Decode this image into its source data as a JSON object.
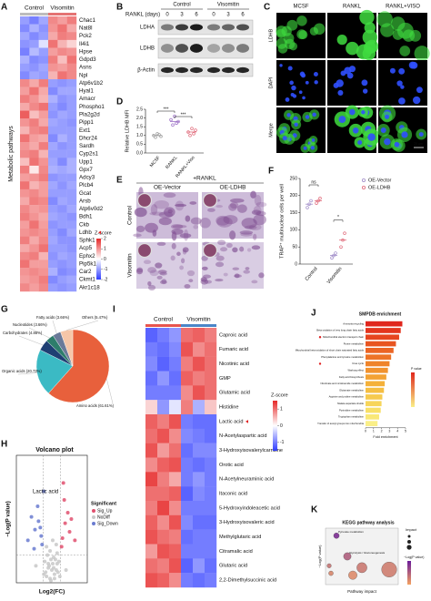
{
  "chart_data": [
    {
      "type": "heatmap",
      "panel": "A",
      "groups": [
        "Control",
        "Visomitin"
      ],
      "ylabel": "Metabolic pathways",
      "rows": [
        "Chac1",
        "Nat8l",
        "Pck2",
        "Il4i1",
        "Hpse",
        "Gdpd3",
        "Asns",
        "Npl",
        "Atp6v1b2",
        "Hyal1",
        "Amacr",
        "Phospho1",
        "Pla2g2d",
        "Pipp1",
        "Ext1",
        "Dhcr24",
        "Sardh",
        "Cyp2s1",
        "Upp1",
        "Gpx7",
        "Adcy3",
        "Plcb4",
        "Gcat",
        "Arsb",
        "Atp6v0d2",
        "Bdh1",
        "Ckb",
        "Ldhb",
        "Sphk1",
        "Acp5",
        "Ephx2",
        "Pip5k1b",
        "Car2",
        "Ckmt1",
        "Akr1c18"
      ],
      "values": [
        [
          -1.0,
          -1.3,
          -0.9,
          1.1,
          0.9,
          1.2
        ],
        [
          -1.2,
          -0.8,
          -1.1,
          1.0,
          1.3,
          0.8
        ],
        [
          -0.9,
          -1.2,
          -1.0,
          0.8,
          1.2,
          1.1
        ],
        [
          -1.1,
          -1.0,
          -0.3,
          1.3,
          0.7,
          0.4
        ],
        [
          -1.3,
          -0.7,
          -1.0,
          0.9,
          1.1,
          1.0
        ],
        [
          -0.8,
          -1.2,
          -1.1,
          1.2,
          0.6,
          1.3
        ],
        [
          -1.0,
          -1.1,
          -0.9,
          1.0,
          0.9,
          1.1
        ],
        [
          -1.2,
          -0.9,
          -1.0,
          0.7,
          1.3,
          1.1
        ],
        [
          1.1,
          0.8,
          1.2,
          -1.0,
          -1.1,
          -1.0
        ],
        [
          0.9,
          1.3,
          0.8,
          -1.2,
          -0.9,
          -0.9
        ],
        [
          1.2,
          1.0,
          0.7,
          -0.8,
          -1.1,
          -1.0
        ],
        [
          0.8,
          1.1,
          1.3,
          -1.0,
          -1.2,
          -1.0
        ],
        [
          1.5,
          0.6,
          0.9,
          -1.1,
          -0.9,
          -1.0
        ],
        [
          1.0,
          1.2,
          0.8,
          -0.9,
          -1.0,
          -1.1
        ],
        [
          0.7,
          1.1,
          1.2,
          -1.0,
          -1.0,
          -1.0
        ],
        [
          1.3,
          0.9,
          0.8,
          -1.2,
          -0.8,
          -1.0
        ],
        [
          1.0,
          0.8,
          1.2,
          -0.9,
          -1.1,
          -1.0
        ],
        [
          1.1,
          1.2,
          0.7,
          -1.0,
          -1.0,
          -1.0
        ],
        [
          0.6,
          1.3,
          1.0,
          -0.9,
          -1.2,
          -0.8
        ],
        [
          1.2,
          0.2,
          1.1,
          -0.8,
          -0.9,
          -0.8
        ],
        [
          0.9,
          1.0,
          1.2,
          -1.1,
          -1.0,
          -1.0
        ],
        [
          1.3,
          0.7,
          0.9,
          -0.9,
          -1.1,
          -0.9
        ],
        [
          1.0,
          1.1,
          0.9,
          -1.0,
          -1.0,
          -1.0
        ],
        [
          0.8,
          1.2,
          1.1,
          -1.2,
          -0.9,
          -1.0
        ],
        [
          1.1,
          0.9,
          1.0,
          -1.0,
          -1.1,
          -0.9
        ],
        [
          1.2,
          1.0,
          0.8,
          -0.9,
          -1.0,
          -1.1
        ],
        [
          0.9,
          1.3,
          0.9,
          -1.1,
          -1.0,
          -1.0
        ],
        [
          1.0,
          1.1,
          1.0,
          -1.0,
          -1.2,
          -0.9
        ],
        [
          1.2,
          0.8,
          1.1,
          -0.9,
          -1.1,
          -1.1
        ],
        [
          0.8,
          1.0,
          1.3,
          -1.0,
          -1.0,
          -1.1
        ],
        [
          1.1,
          1.2,
          0.7,
          -1.1,
          -0.9,
          -1.0
        ],
        [
          1.3,
          0.9,
          0.9,
          -1.0,
          -1.1,
          -1.0
        ],
        [
          1.0,
          1.1,
          1.0,
          -0.8,
          -1.2,
          -1.1
        ],
        [
          0.9,
          1.0,
          1.2,
          -1.2,
          -1.0,
          -0.9
        ],
        [
          1.1,
          0.9,
          1.1,
          -1.0,
          -1.1,
          -1.0
        ]
      ],
      "legend_title": "Z-score",
      "zlim": [
        -2,
        2
      ],
      "zticks": [
        2,
        1,
        0,
        -1,
        -2
      ],
      "group_colors": [
        "#bdbdbd",
        "#e57373"
      ]
    },
    {
      "type": "blot",
      "panel": "B",
      "xlabel": "RANKL (days)",
      "groups": [
        "Control",
        "Visomitin"
      ],
      "lanes": [
        "0",
        "3",
        "6",
        "0",
        "3",
        "6"
      ],
      "bands": [
        "LDHA",
        "LDHB",
        "β-Actin"
      ]
    },
    {
      "type": "image_grid",
      "panel": "C",
      "columns": [
        "MCSF",
        "RANKL",
        "RANKL+VISO"
      ],
      "rows": [
        "LDHB",
        "DAPI",
        "Merge"
      ],
      "scale_bar": "20 μm",
      "column_colors": [
        "#2e9d2e",
        "#2e9d2e",
        "#2e9d2e"
      ]
    },
    {
      "type": "dotplot",
      "panel": "D",
      "ylabel": "Relative LDHB MFI",
      "categories": [
        "MCSF",
        "RANKL",
        "RANKL+Viso"
      ],
      "points": [
        [
          1.0,
          0.9,
          1.1,
          1.05,
          0.95
        ],
        [
          1.9,
          1.6,
          2.1,
          1.7,
          1.8
        ],
        [
          1.2,
          1.0,
          1.4,
          1.1,
          1.3
        ]
      ],
      "means": [
        1.0,
        1.8,
        1.2
      ],
      "colors": [
        "#9e9e9e",
        "#9b6fc6",
        "#e06a7a"
      ],
      "ylim": [
        0,
        2.5
      ],
      "yticks": [
        {
          "value": 0,
          "label": "0.0"
        },
        {
          "value": 0.5,
          "label": "0.5"
        },
        {
          "value": 1,
          "label": "1.0"
        },
        {
          "value": 1.5,
          "label": "1.5"
        },
        {
          "value": 2,
          "label": "2.0"
        },
        {
          "value": 2.5,
          "label": "2.5"
        }
      ],
      "significance": [
        "***",
        "***"
      ]
    },
    {
      "type": "image_grid",
      "panel": "E",
      "title": "+RANKL",
      "columns": [
        "OE-Vector",
        "OE-LDHB"
      ],
      "rows": [
        "Control",
        "Visomitin"
      ]
    },
    {
      "type": "grouped_dotplot",
      "panel": "F",
      "ylabel": "TRAP⁺ multinuclear cells per well",
      "categories": [
        "Control",
        "Visomitin"
      ],
      "series": [
        {
          "name": "OE-Vector",
          "color": "#a08cc8",
          "points": [
            [
              165,
              175,
              185
            ],
            [
              18,
              25,
              32
            ]
          ],
          "means": [
            175,
            25
          ]
        },
        {
          "name": "OE-LDHB",
          "color": "#e06a7a",
          "points": [
            [
              178,
              185,
              192
            ],
            [
              50,
              70,
              90
            ]
          ],
          "means": [
            185,
            70
          ]
        }
      ],
      "ylim": [
        0,
        250
      ],
      "yticks": [
        0,
        50,
        100,
        150,
        200,
        250
      ],
      "significance": [
        "ns",
        "*"
      ]
    },
    {
      "type": "pie",
      "panel": "G",
      "labels": [
        "Amino acids (61.61%)",
        "Organic acids (20.73%)",
        "Carbohydrates (4.88%)",
        "Nucleotides (3.66%)",
        "Fatty acids (3.66%)",
        "Others (5.47%)"
      ],
      "values": [
        61.61,
        20.73,
        4.88,
        3.66,
        3.66,
        5.47
      ],
      "colors": [
        "#e8603c",
        "#3bbac4",
        "#1f3f73",
        "#2e7d6b",
        "#6b7a99",
        "#f6c6a8"
      ]
    },
    {
      "type": "scatter",
      "panel": "H",
      "title": "Volcano plot",
      "xlabel": "Log2(FC)",
      "ylabel": "−Log(P value)",
      "annotation": "Lactic acid",
      "legend_title": "Significant",
      "xlim": [
        -4,
        4
      ],
      "ylim": [
        0,
        6
      ],
      "x_thresholds": [
        -1,
        1
      ],
      "y_threshold": 1.3,
      "series": [
        {
          "name": "Sig_Up",
          "color": "#e0506e",
          "x": [
            1.2,
            1.5,
            2.0,
            1.8,
            2.6,
            1.1,
            2.2,
            1.4,
            1.3
          ],
          "y": [
            2.1,
            2.8,
            2.4,
            3.3,
            2.0,
            1.7,
            3.0,
            3.9,
            4.7
          ]
        },
        {
          "name": "NoDiff",
          "color": "#c8c8c8",
          "x": [
            -0.2,
            0.3,
            0.5,
            -0.6,
            0.1,
            -0.4,
            0.7,
            -0.8,
            0.2,
            -0.1,
            0.4,
            -0.3,
            0.9,
            -0.7,
            0.6,
            -0.5,
            0.0,
            0.8,
            -0.9,
            0.3,
            -0.2,
            0.5,
            -0.6,
            0.1,
            0.2,
            -0.4,
            0.6,
            -0.1,
            1.6,
            -1.8
          ],
          "y": [
            0.2,
            0.4,
            0.6,
            0.3,
            0.9,
            0.7,
            0.5,
            1.0,
            1.2,
            0.1,
            1.1,
            0.8,
            0.3,
            0.5,
            0.9,
            1.3,
            0.6,
            1.0,
            0.4,
            0.2,
            1.5,
            1.8,
            1.7,
            2.0,
            0.7,
            0.9,
            1.4,
            1.1,
            0.6,
            0.8
          ]
        },
        {
          "name": "Sig_Down",
          "color": "#6a7bd0",
          "x": [
            -1.2,
            -1.5,
            -1.9,
            -2.3,
            -1.1,
            -2.7,
            -1.6,
            -1.3,
            -2.0,
            -0.9
          ],
          "y": [
            2.2,
            2.9,
            2.5,
            3.1,
            1.8,
            2.0,
            3.6,
            2.6,
            1.6,
            4.3
          ]
        }
      ]
    },
    {
      "type": "heatmap",
      "panel": "I",
      "groups": [
        "Control",
        "Visomitin"
      ],
      "rows": [
        "Caproic acid",
        "Fumaric acid",
        "Nicotinic acid",
        "GMP",
        "Glutamic acid",
        "Histidine",
        "Lactic acid",
        "N-Acetylaspartic acid",
        "3-Hydroxyisovalerylcarnitine",
        "Orotic acid",
        "N-Acetylneuraminic acid",
        "Itaconic acid",
        "5-Hydroxyindoleacetic acid",
        "3-Hydroxyisovaleric acid",
        "Methylglutaric acid",
        "Citramalic acid",
        "Glutaric acid",
        "2,2-Dimethylsuccinic acid"
      ],
      "values": [
        [
          -1.2,
          -1.0,
          -0.8,
          1.0,
          1.1,
          0.9
        ],
        [
          -1.0,
          -1.1,
          -0.9,
          1.2,
          0.8,
          1.0
        ],
        [
          -0.9,
          -1.2,
          -1.0,
          0.9,
          1.2,
          1.0
        ],
        [
          -1.1,
          -0.8,
          -1.1,
          1.1,
          0.9,
          1.0
        ],
        [
          -1.0,
          -1.0,
          -1.0,
          0.8,
          1.2,
          1.0
        ],
        [
          0.3,
          -0.8,
          -0.2,
          0.9,
          -0.6,
          0.4
        ],
        [
          1.1,
          0.9,
          1.2,
          -1.0,
          -1.1,
          -1.1
        ],
        [
          1.0,
          1.2,
          0.8,
          -0.9,
          -1.0,
          -1.1
        ],
        [
          1.2,
          0.7,
          1.0,
          -1.1,
          -0.9,
          -0.9
        ],
        [
          0.8,
          1.1,
          1.2,
          -1.0,
          -1.1,
          -1.0
        ],
        [
          1.3,
          0.9,
          0.6,
          -1.0,
          -0.8,
          -1.0
        ],
        [
          1.0,
          1.0,
          1.1,
          -1.2,
          -0.9,
          -1.0
        ],
        [
          0.9,
          1.3,
          0.8,
          -1.0,
          -1.0,
          -1.0
        ],
        [
          1.1,
          0.8,
          1.2,
          -0.9,
          -1.1,
          -1.1
        ],
        [
          1.2,
          1.0,
          0.9,
          -1.1,
          -1.0,
          -1.0
        ],
        [
          0.7,
          1.2,
          1.1,
          -1.0,
          -1.0,
          -1.0
        ],
        [
          1.0,
          0.9,
          1.2,
          -1.2,
          -0.8,
          -1.1
        ],
        [
          1.2,
          1.1,
          0.8,
          -1.0,
          -1.1,
          -1.0
        ]
      ],
      "legend_title": "Z-score",
      "zlim": [
        -1.5,
        1.5
      ],
      "zticks": [
        1,
        0,
        -1
      ],
      "group_colors": [
        "#e8554e",
        "#4a86c8"
      ]
    },
    {
      "type": "hbar",
      "panel": "J",
      "title": "SMPDB enrichment",
      "xlabel": "Fold enrichment",
      "legend_title": "P value",
      "categories": [
        "Ammonia recycling",
        "Beta oxidation of very long chain fatty acids",
        "Mitochondrial electron transport chain",
        "Purine metabolism",
        "Mitochondrial beta-oxidation of short chain saturated fatty acids",
        "Phenylalanine and tyrosine metabolism",
        "Urea cycle",
        "Warburg effect",
        "Fatty acid biosynthesis",
        "Nicotinate and nicotinamide metabolism",
        "Glutamate metabolism",
        "Arginine and proline metabolism",
        "Malate-aspartate shuttle",
        "Pyrimidine metabolism",
        "Tryptophan metabolism",
        "Transfer of acetyl groups into mitochondria"
      ],
      "values": [
        4.6,
        4.4,
        4.2,
        3.8,
        3.5,
        3.2,
        3.0,
        2.8,
        2.6,
        2.4,
        2.3,
        2.1,
        2.0,
        1.9,
        1.7,
        1.5
      ],
      "colors": [
        "#e0261c",
        "#e3351d",
        "#e6451f",
        "#e85521",
        "#eb6524",
        "#ed7427",
        "#ef842b",
        "#f1932f",
        "#f3a234",
        "#f4b13a",
        "#f5be43",
        "#f6ca4e",
        "#f7d55a",
        "#f8df68",
        "#f9e877",
        "#faef88"
      ],
      "xlim": [
        0,
        5
      ],
      "xticks": [
        0,
        1,
        2,
        3,
        4,
        5
      ]
    },
    {
      "type": "bubble",
      "panel": "K",
      "title": "KEGG pathway analysis",
      "xlabel": "Pathway impact",
      "ylabel": "−Log(P value)",
      "size_legend": "Impact",
      "color_legend": "−Log(P value)",
      "x": [
        0.06,
        0.12,
        0.02,
        0.2,
        0.35,
        0.03,
        0.15
      ],
      "values": [
        2.6,
        1.5,
        1.0,
        0.9,
        0.8,
        0.6,
        0.5
      ],
      "point_labels": [
        "Pyruvate metabolism",
        "Glycolysis / Gluconeogenesis",
        null,
        null,
        null,
        null,
        null
      ],
      "xlim": [
        0,
        0.4
      ],
      "ylim": [
        0,
        3
      ],
      "colors": [
        "#6a1b9a",
        "#f4a261"
      ]
    }
  ]
}
